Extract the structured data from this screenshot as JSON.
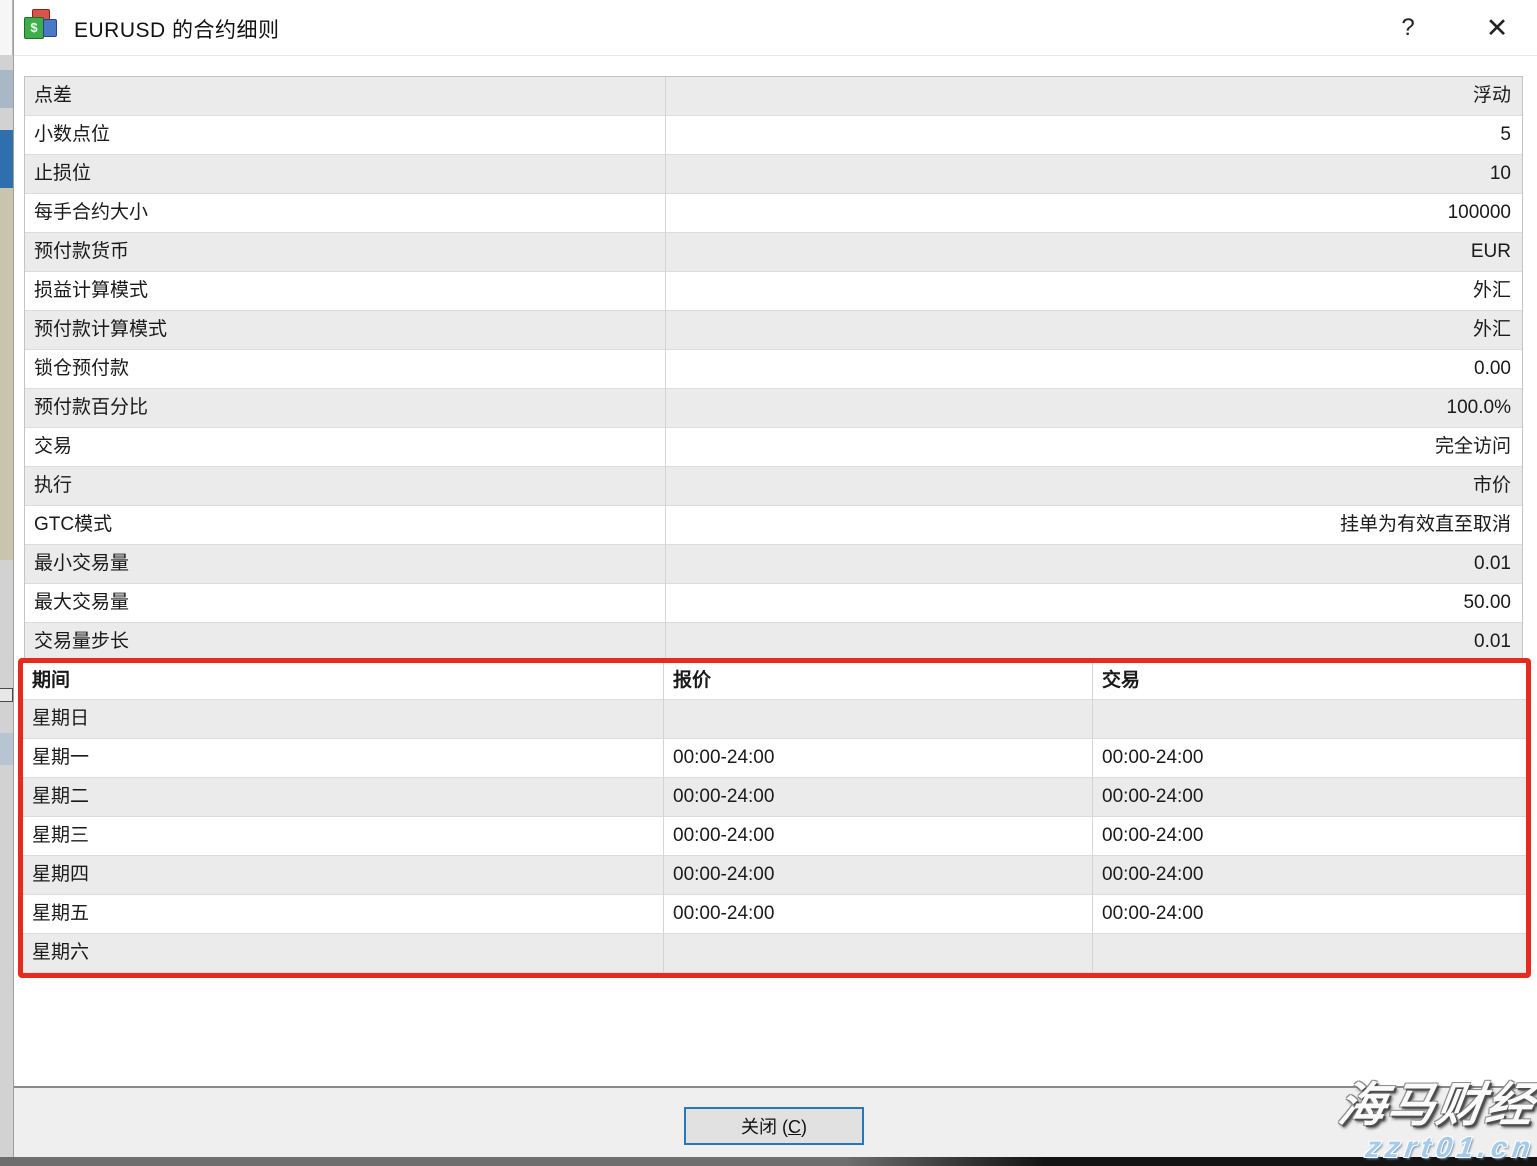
{
  "window": {
    "title": "EURUSD 的合约细则",
    "help_label": "?",
    "close_icon": "✕"
  },
  "spec": {
    "rows": [
      {
        "label": "点差",
        "value": "浮动"
      },
      {
        "label": "小数点位",
        "value": "5"
      },
      {
        "label": "止损位",
        "value": "10"
      },
      {
        "label": "每手合约大小",
        "value": "100000"
      },
      {
        "label": "预付款货币",
        "value": "EUR"
      },
      {
        "label": "损益计算模式",
        "value": "外汇"
      },
      {
        "label": "预付款计算模式",
        "value": "外汇"
      },
      {
        "label": "锁仓预付款",
        "value": "0.00"
      },
      {
        "label": "预付款百分比",
        "value": "100.0%"
      },
      {
        "label": "交易",
        "value": "完全访问"
      },
      {
        "label": "执行",
        "value": "市价"
      },
      {
        "label": "GTC模式",
        "value": "挂单为有效直至取消"
      },
      {
        "label": "最小交易量",
        "value": "0.01"
      },
      {
        "label": "最大交易量",
        "value": "50.00"
      },
      {
        "label": "交易量步长",
        "value": "0.01"
      }
    ]
  },
  "sessions": {
    "headers": {
      "period": "期间",
      "quotes": "报价",
      "trade": "交易"
    },
    "rows": [
      {
        "day": "星期日",
        "quotes": "",
        "trade": ""
      },
      {
        "day": "星期一",
        "quotes": "00:00-24:00",
        "trade": "00:00-24:00"
      },
      {
        "day": "星期二",
        "quotes": "00:00-24:00",
        "trade": "00:00-24:00"
      },
      {
        "day": "星期三",
        "quotes": "00:00-24:00",
        "trade": "00:00-24:00"
      },
      {
        "day": "星期四",
        "quotes": "00:00-24:00",
        "trade": "00:00-24:00"
      },
      {
        "day": "星期五",
        "quotes": "00:00-24:00",
        "trade": "00:00-24:00"
      },
      {
        "day": "星期六",
        "quotes": "",
        "trade": ""
      }
    ]
  },
  "footer": {
    "close_prefix": "关闭 (",
    "close_key": "C",
    "close_suffix": ")"
  },
  "watermark": {
    "line1": "海马财经",
    "line2": "zzrt01.cn"
  },
  "colors": {
    "highlight_border": "#e62b1e",
    "row_stripe": "#ebebeb",
    "button_focus_border": "#2878b8",
    "watermark_blue": "#a5cbec"
  }
}
